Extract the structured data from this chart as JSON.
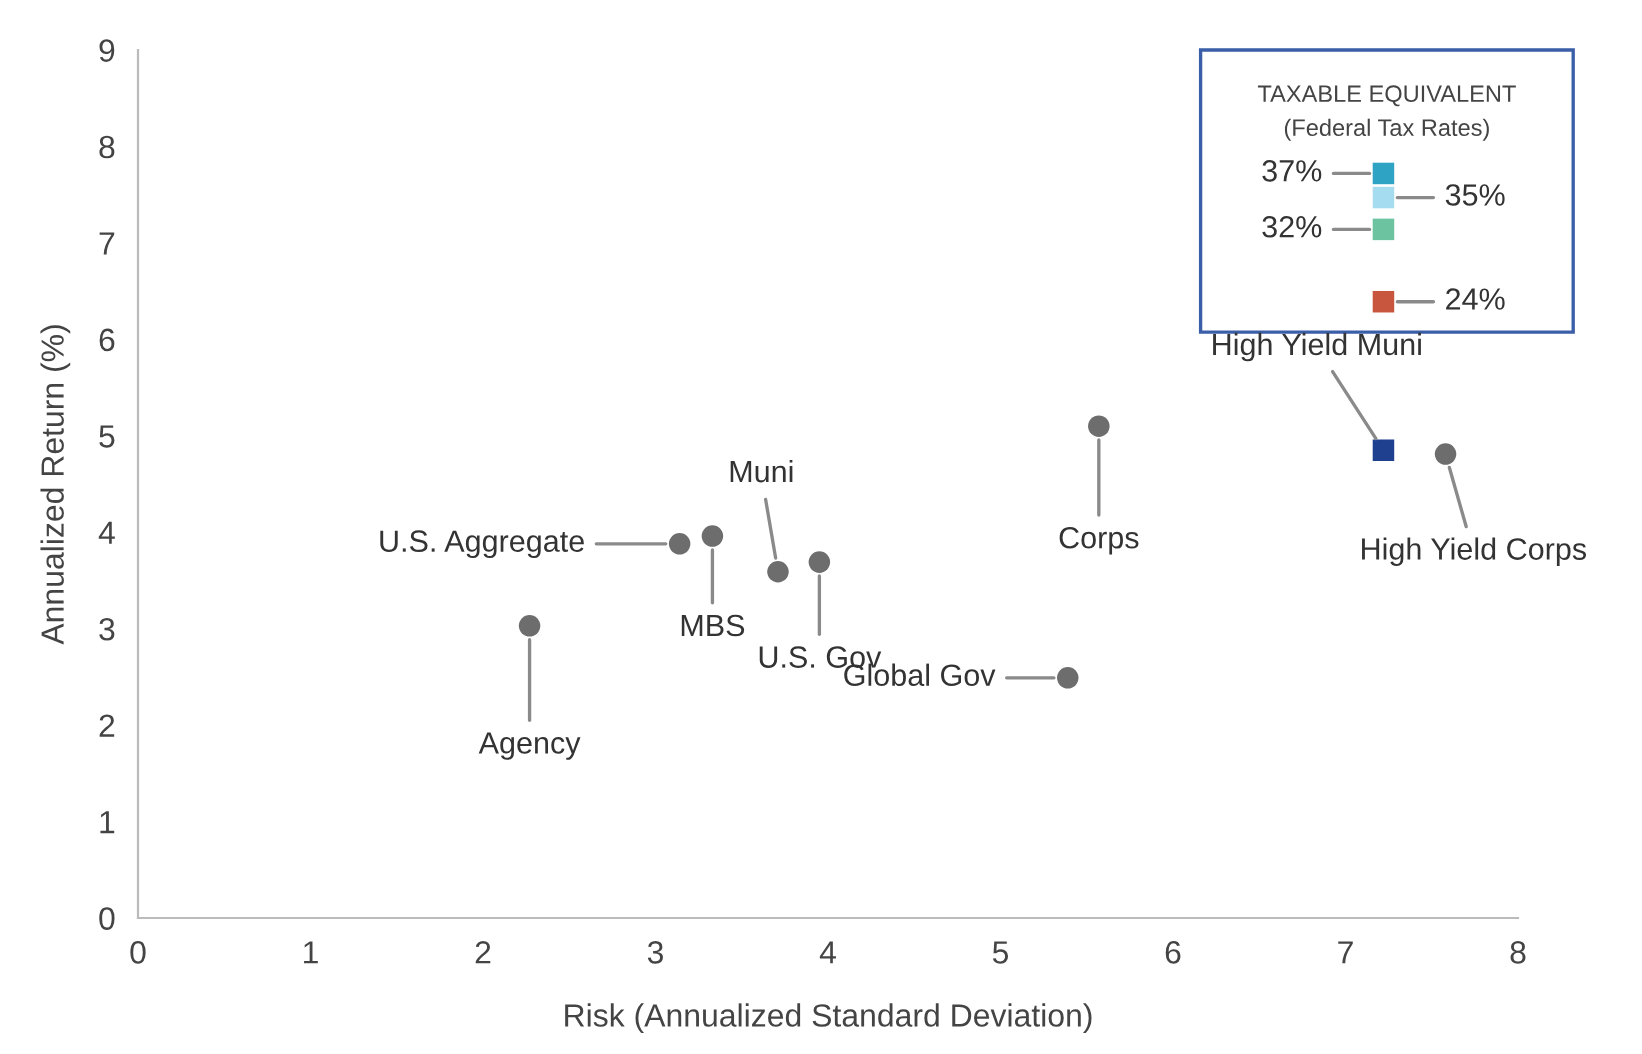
{
  "chart_data": {
    "type": "scatter",
    "xlabel": "Risk (Annualized Standard Deviation)",
    "ylabel": "Annualized Return (%)",
    "xlim": [
      0,
      8
    ],
    "xticks": [
      0,
      1,
      2,
      3,
      4,
      5,
      6,
      7,
      8
    ],
    "ylim": [
      0,
      9
    ],
    "yticks": [
      0,
      1,
      2,
      3,
      4,
      5,
      6,
      7,
      8,
      9
    ],
    "grid": false,
    "legend": false,
    "annotations": [
      "TAXABLE EQUIVALENT\n(Federal Tax Rates)"
    ],
    "series": [
      {
        "name": "Agency",
        "color": "#6d6d6d",
        "marker": "circle",
        "x": [
          2.27
        ],
        "values": [
          3.03
        ]
      },
      {
        "name": "U.S. Aggregate",
        "color": "#6d6d6d",
        "marker": "circle",
        "x": [
          3.14
        ],
        "values": [
          3.88
        ]
      },
      {
        "name": "MBS",
        "color": "#6d6d6d",
        "marker": "circle",
        "x": [
          3.33
        ],
        "values": [
          3.96
        ]
      },
      {
        "name": "Muni",
        "color": "#6d6d6d",
        "marker": "circle",
        "x": [
          3.71
        ],
        "values": [
          3.59
        ]
      },
      {
        "name": "U.S. Gov",
        "color": "#6d6d6d",
        "marker": "circle",
        "x": [
          3.95
        ],
        "values": [
          3.69
        ]
      },
      {
        "name": "Corps",
        "color": "#6d6d6d",
        "marker": "circle",
        "x": [
          5.57
        ],
        "values": [
          5.1
        ]
      },
      {
        "name": "Global Gov",
        "color": "#6d6d6d",
        "marker": "circle",
        "x": [
          5.39
        ],
        "values": [
          2.49
        ]
      },
      {
        "name": "High Yield Corps",
        "color": "#6d6d6d",
        "marker": "circle",
        "x": [
          7.58
        ],
        "values": [
          4.81
        ]
      },
      {
        "name": "High Yield Muni",
        "color": "#1f3f8f",
        "marker": "square",
        "x": [
          7.22
        ],
        "values": [
          4.85
        ]
      },
      {
        "name": "37%",
        "color": "#2ea3c4",
        "marker": "square",
        "x": [
          7.22
        ],
        "values": [
          7.72
        ]
      },
      {
        "name": "35%",
        "color": "#a6dcef",
        "marker": "square",
        "x": [
          7.22
        ],
        "values": [
          7.47
        ]
      },
      {
        "name": "32%",
        "color": "#6cc3a0",
        "marker": "square",
        "x": [
          7.22
        ],
        "values": [
          7.14
        ]
      },
      {
        "name": "24%",
        "color": "#c8553d",
        "marker": "square",
        "x": [
          7.22
        ],
        "values": [
          6.39
        ]
      }
    ]
  }
}
